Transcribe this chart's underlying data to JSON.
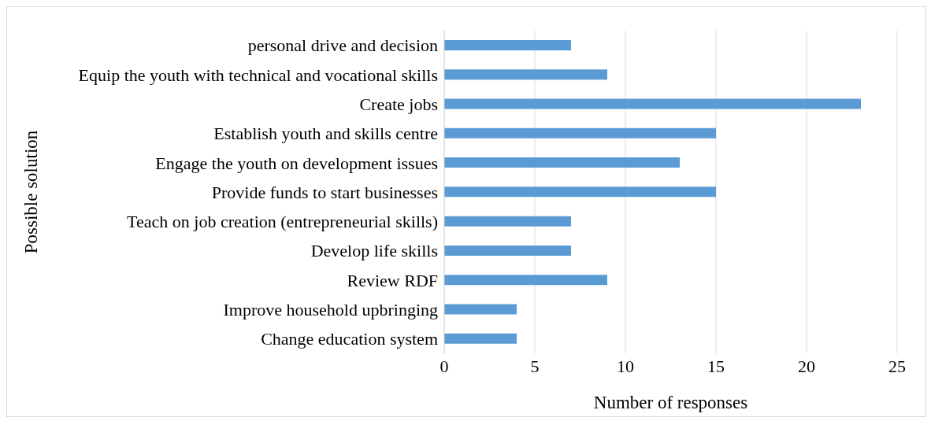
{
  "chart_data": {
    "type": "bar",
    "orientation": "horizontal",
    "xlabel": "Number of responses",
    "ylabel": "Possible solution",
    "categories": [
      "personal drive and decision",
      "Equip the youth with technical and vocational skills",
      "Create jobs",
      "Establish youth and skills centre",
      "Engage the youth on development issues",
      "Provide funds to start businesses",
      "Teach on job creation (entrepreneurial skills)",
      "Develop life skills",
      "Review RDF",
      "Improve household upbringing",
      "Change education system"
    ],
    "values": [
      7,
      9,
      23,
      15,
      13,
      15,
      7,
      7,
      9,
      4,
      4
    ],
    "color": "#5b9bd5",
    "xlim": [
      0,
      25
    ],
    "xticks": [
      0,
      5,
      10,
      15,
      20,
      25
    ],
    "grid": "x",
    "legend": false
  }
}
